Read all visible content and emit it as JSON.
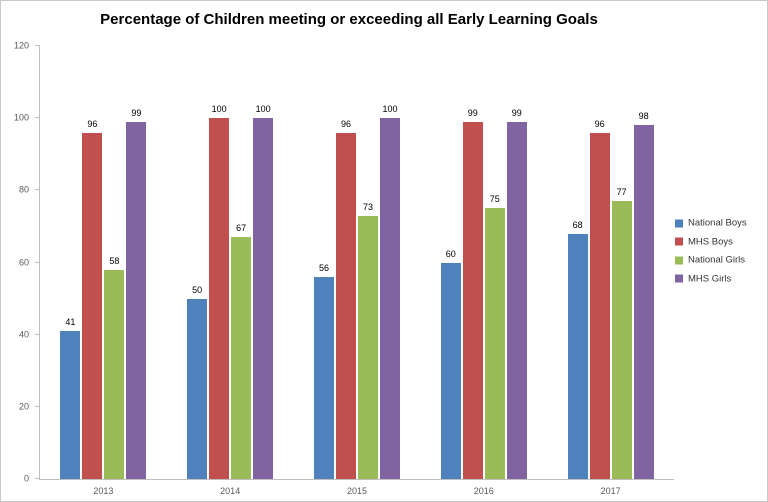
{
  "chart_data": {
    "type": "bar",
    "title": "Percentage of Children meeting or exceeding all Early Learning Goals",
    "categories": [
      "2013",
      "2014",
      "2015",
      "2016",
      "2017"
    ],
    "series": [
      {
        "name": "National Boys",
        "color": "#4F81BD",
        "values": [
          41,
          50,
          56,
          60,
          68
        ]
      },
      {
        "name": "MHS Boys",
        "color": "#C0504D",
        "values": [
          96,
          100,
          96,
          99,
          96
        ]
      },
      {
        "name": "National Girls",
        "color": "#9BBB59",
        "values": [
          58,
          67,
          73,
          75,
          77
        ]
      },
      {
        "name": "MHS Girls",
        "color": "#8064A2",
        "values": [
          99,
          100,
          100,
          99,
          98
        ]
      }
    ],
    "xlabel": "",
    "ylabel": "",
    "ylim": [
      0,
      120
    ],
    "ytick_step": 20,
    "grid": false,
    "legend_position": "right",
    "data_labels": true,
    "axis_color": "#bfbfbf",
    "tick_label_color": "#595959"
  }
}
